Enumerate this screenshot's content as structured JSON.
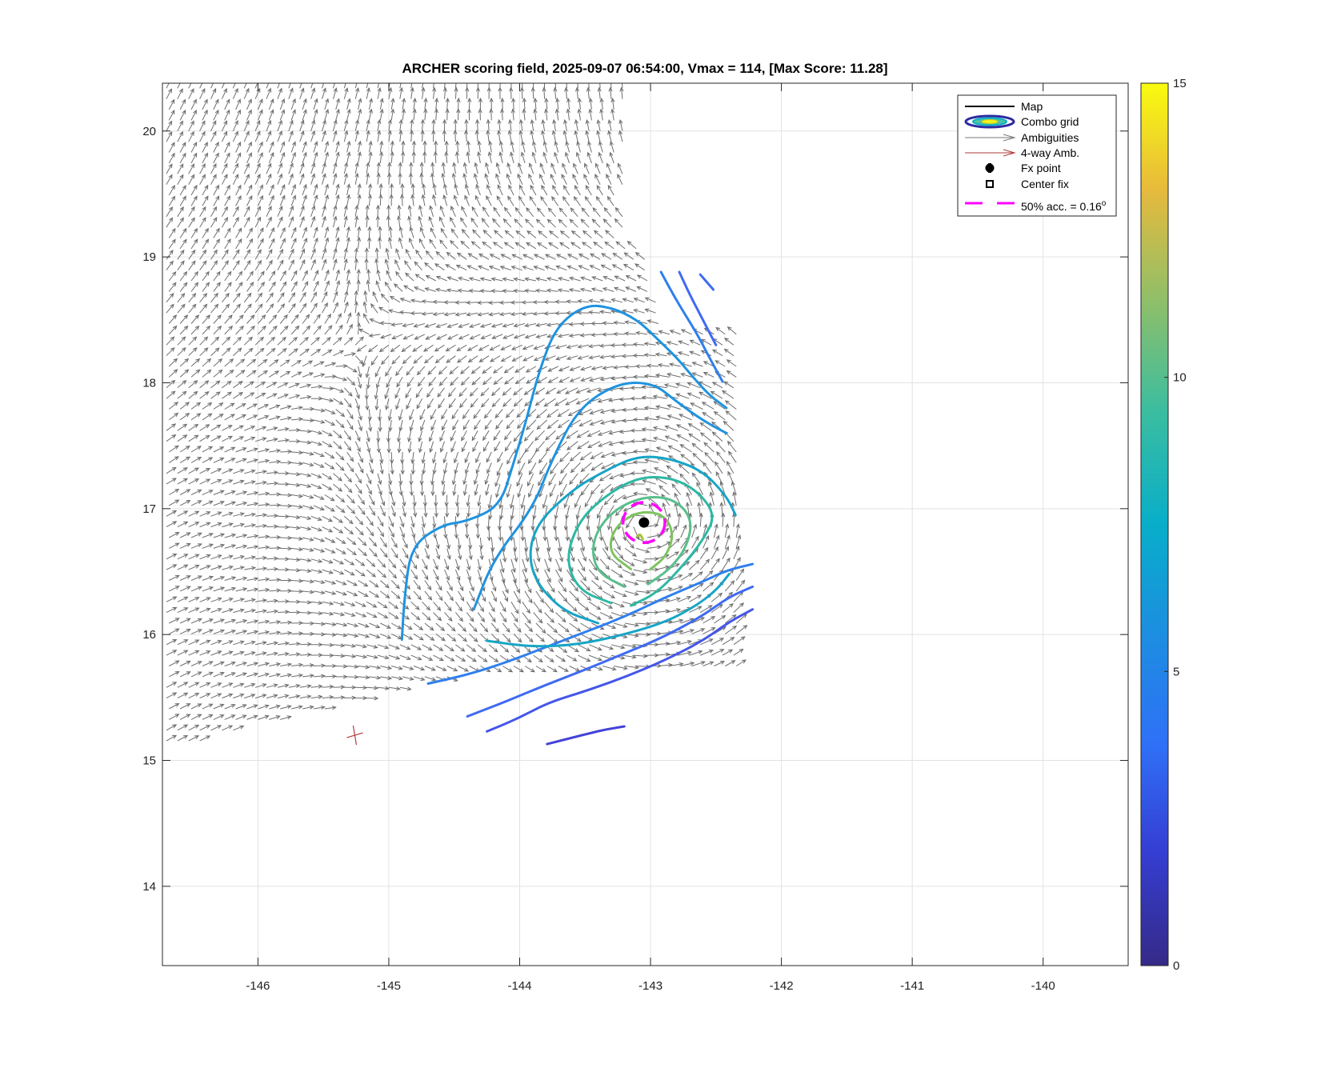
{
  "chart_data": {
    "type": "contour",
    "title": "ARCHER scoring field, 2025-09-07 06:54:00, Vmax = 114, [Max Score: 11.28]",
    "xlim": [
      -146.73,
      -139.35
    ],
    "ylim": [
      13.37,
      20.38
    ],
    "x_ticks": [
      -146,
      -145,
      -144,
      -143,
      -142,
      -141,
      -140
    ],
    "x_tick_labels": [
      "-146",
      "-145",
      "-144",
      "-143",
      "-142",
      "-141",
      "-140"
    ],
    "y_ticks": [
      14,
      15,
      16,
      17,
      18,
      19,
      20
    ],
    "y_tick_labels": [
      "14",
      "15",
      "16",
      "17",
      "18",
      "19",
      "20"
    ],
    "grid": true,
    "legend": {
      "placement": "top-right",
      "entries": [
        {
          "label": "Map",
          "symbol": "line"
        },
        {
          "label": "Combo grid",
          "symbol": "ellipses"
        },
        {
          "label": "Ambiguities",
          "symbol": "gray-arrow"
        },
        {
          "label": "4-way Amb.",
          "symbol": "red-arrow"
        },
        {
          "label": "Fx point",
          "symbol": "filled-circle"
        },
        {
          "label": "Center fix",
          "symbol": "open-square"
        },
        {
          "label": "50% acc. = 0.16",
          "label_sup": "o",
          "symbol": "magenta-dash"
        }
      ]
    },
    "colorbar": {
      "min": 0,
      "max": 15,
      "ticks": [
        0,
        5,
        10,
        15
      ],
      "tick_labels": [
        "0",
        "5",
        "10",
        "15"
      ]
    },
    "fx_point": {
      "lon": -143.05,
      "lat": 16.89
    },
    "acc_circle": {
      "lon": -143.05,
      "lat": 16.89,
      "radius_deg": 0.16,
      "color": "#ff00ff"
    },
    "four_way_ambiguity": {
      "lon": -145.26,
      "lat": 15.2,
      "color": "#b03a3a"
    },
    "ambiguities_color": "#6e6e6e",
    "contours": [
      {
        "level": 2.0,
        "color": "#4343d8",
        "closed": false,
        "points": [
          [
            -143.79,
            15.13
          ],
          [
            -143.45,
            15.22
          ],
          [
            -143.32,
            15.25
          ],
          [
            -143.2,
            15.27
          ]
        ]
      },
      {
        "level": 2.9,
        "color": "#4456ea",
        "closed": false,
        "points": [
          [
            -144.25,
            15.23
          ],
          [
            -144.02,
            15.33
          ],
          [
            -143.78,
            15.46
          ],
          [
            -143.5,
            15.55
          ],
          [
            -143.2,
            15.66
          ],
          [
            -142.9,
            15.79
          ],
          [
            -142.6,
            15.95
          ],
          [
            -142.4,
            16.1
          ],
          [
            -142.22,
            16.2
          ]
        ]
      },
      {
        "level": 3.8,
        "color": "#3f6af2",
        "closed": false,
        "points": [
          [
            -144.4,
            15.35
          ],
          [
            -144.1,
            15.47
          ],
          [
            -143.8,
            15.6
          ],
          [
            -143.5,
            15.72
          ],
          [
            -143.2,
            15.85
          ],
          [
            -142.9,
            15.98
          ],
          [
            -142.6,
            16.15
          ],
          [
            -142.4,
            16.3
          ],
          [
            -142.22,
            16.38
          ]
        ]
      },
      {
        "level": 4.7,
        "color": "#2f7fee",
        "closed": false,
        "points": [
          [
            -144.7,
            15.61
          ],
          [
            -144.4,
            15.68
          ],
          [
            -144.1,
            15.78
          ],
          [
            -143.8,
            15.9
          ],
          [
            -143.5,
            16.02
          ],
          [
            -143.2,
            16.14
          ],
          [
            -142.9,
            16.29
          ],
          [
            -142.6,
            16.42
          ],
          [
            -142.42,
            16.51
          ],
          [
            -142.22,
            16.56
          ]
        ]
      },
      {
        "level": 4.7,
        "color": "#3f6af2",
        "closed": false,
        "points": [
          [
            -142.62,
            18.86
          ],
          [
            -142.52,
            18.74
          ]
        ]
      },
      {
        "level": 3.8,
        "color": "#3f6af2",
        "closed": false,
        "points": [
          [
            -142.78,
            18.88
          ],
          [
            -142.7,
            18.7
          ],
          [
            -142.6,
            18.5
          ],
          [
            -142.5,
            18.3
          ]
        ]
      },
      {
        "level": 5.6,
        "color": "#2f7fee",
        "closed": false,
        "points": [
          [
            -142.92,
            18.88
          ],
          [
            -142.8,
            18.65
          ],
          [
            -142.65,
            18.4
          ],
          [
            -142.55,
            18.2
          ],
          [
            -142.45,
            18.01
          ]
        ]
      },
      {
        "level": 6.4,
        "color": "#1f93e0",
        "closed": false,
        "points": [
          [
            -144.9,
            15.96
          ],
          [
            -144.88,
            16.3
          ],
          [
            -144.83,
            16.7
          ],
          [
            -144.6,
            16.87
          ],
          [
            -144.4,
            16.9
          ],
          [
            -144.15,
            17.02
          ],
          [
            -144.05,
            17.35
          ],
          [
            -143.95,
            17.7
          ],
          [
            -143.85,
            18.1
          ],
          [
            -143.72,
            18.45
          ],
          [
            -143.5,
            18.62
          ],
          [
            -143.3,
            18.6
          ],
          [
            -143.1,
            18.5
          ],
          [
            -142.95,
            18.35
          ],
          [
            -142.8,
            18.2
          ],
          [
            -142.68,
            18.05
          ],
          [
            -142.55,
            17.9
          ],
          [
            -142.42,
            17.8
          ]
        ]
      },
      {
        "level": 6.4,
        "color": "#1f93e0",
        "closed": false,
        "points": [
          [
            -144.35,
            16.2
          ],
          [
            -144.2,
            16.6
          ],
          [
            -143.9,
            17.0
          ],
          [
            -143.75,
            17.4
          ],
          [
            -143.55,
            17.8
          ],
          [
            -143.25,
            18.0
          ],
          [
            -142.98,
            18.0
          ],
          [
            -142.8,
            17.85
          ],
          [
            -142.6,
            17.7
          ],
          [
            -142.42,
            17.6
          ]
        ]
      },
      {
        "level": 7.2,
        "color": "#17a5c6",
        "closed": false,
        "points": [
          [
            -144.25,
            15.95
          ],
          [
            -143.9,
            15.9
          ],
          [
            -143.55,
            15.92
          ],
          [
            -143.2,
            16.0
          ],
          [
            -142.88,
            16.1
          ],
          [
            -142.65,
            16.23
          ],
          [
            -142.5,
            16.35
          ],
          [
            -142.4,
            16.48
          ]
        ]
      },
      {
        "level": 7.2,
        "color": "#17a5c6",
        "closed": false,
        "points": [
          [
            -143.4,
            16.09
          ],
          [
            -143.7,
            16.2
          ],
          [
            -143.93,
            16.5
          ],
          [
            -143.9,
            16.85
          ],
          [
            -143.6,
            17.15
          ],
          [
            -143.35,
            17.3
          ],
          [
            -143.1,
            17.42
          ],
          [
            -142.85,
            17.4
          ],
          [
            -142.6,
            17.3
          ],
          [
            -142.42,
            17.1
          ],
          [
            -142.35,
            16.95
          ]
        ]
      },
      {
        "level": 7.9,
        "color": "#2cb8a4",
        "closed": false,
        "points": [
          [
            -143.3,
            16.25
          ],
          [
            -143.55,
            16.35
          ],
          [
            -143.65,
            16.6
          ],
          [
            -143.55,
            16.9
          ],
          [
            -143.35,
            17.1
          ],
          [
            -143.1,
            17.25
          ],
          [
            -142.85,
            17.25
          ],
          [
            -142.65,
            17.15
          ],
          [
            -142.5,
            16.95
          ],
          [
            -142.6,
            16.75
          ],
          [
            -142.75,
            16.55
          ],
          [
            -142.95,
            16.33
          ],
          [
            -143.15,
            16.23
          ]
        ]
      },
      {
        "level": 8.8,
        "color": "#59bf8c",
        "closed": false,
        "points": [
          [
            -143.2,
            16.38
          ],
          [
            -143.42,
            16.5
          ],
          [
            -143.45,
            16.75
          ],
          [
            -143.3,
            16.98
          ],
          [
            -143.05,
            17.1
          ],
          [
            -142.82,
            17.08
          ],
          [
            -142.68,
            16.92
          ],
          [
            -142.72,
            16.7
          ],
          [
            -142.85,
            16.52
          ],
          [
            -143.02,
            16.4
          ]
        ]
      },
      {
        "level": 9.6,
        "color": "#7dc45e",
        "closed": false,
        "points": [
          [
            -143.15,
            16.52
          ],
          [
            -143.32,
            16.65
          ],
          [
            -143.28,
            16.85
          ],
          [
            -143.1,
            16.98
          ],
          [
            -142.9,
            16.96
          ],
          [
            -142.82,
            16.8
          ],
          [
            -142.88,
            16.62
          ],
          [
            -143.0,
            16.52
          ]
        ]
      },
      {
        "level": 10.5,
        "color": "#a6c238",
        "closed": false,
        "points": [
          [
            -143.1,
            16.78
          ],
          [
            -143.08,
            16.8
          ],
          [
            -143.06,
            16.76
          ]
        ]
      }
    ]
  }
}
